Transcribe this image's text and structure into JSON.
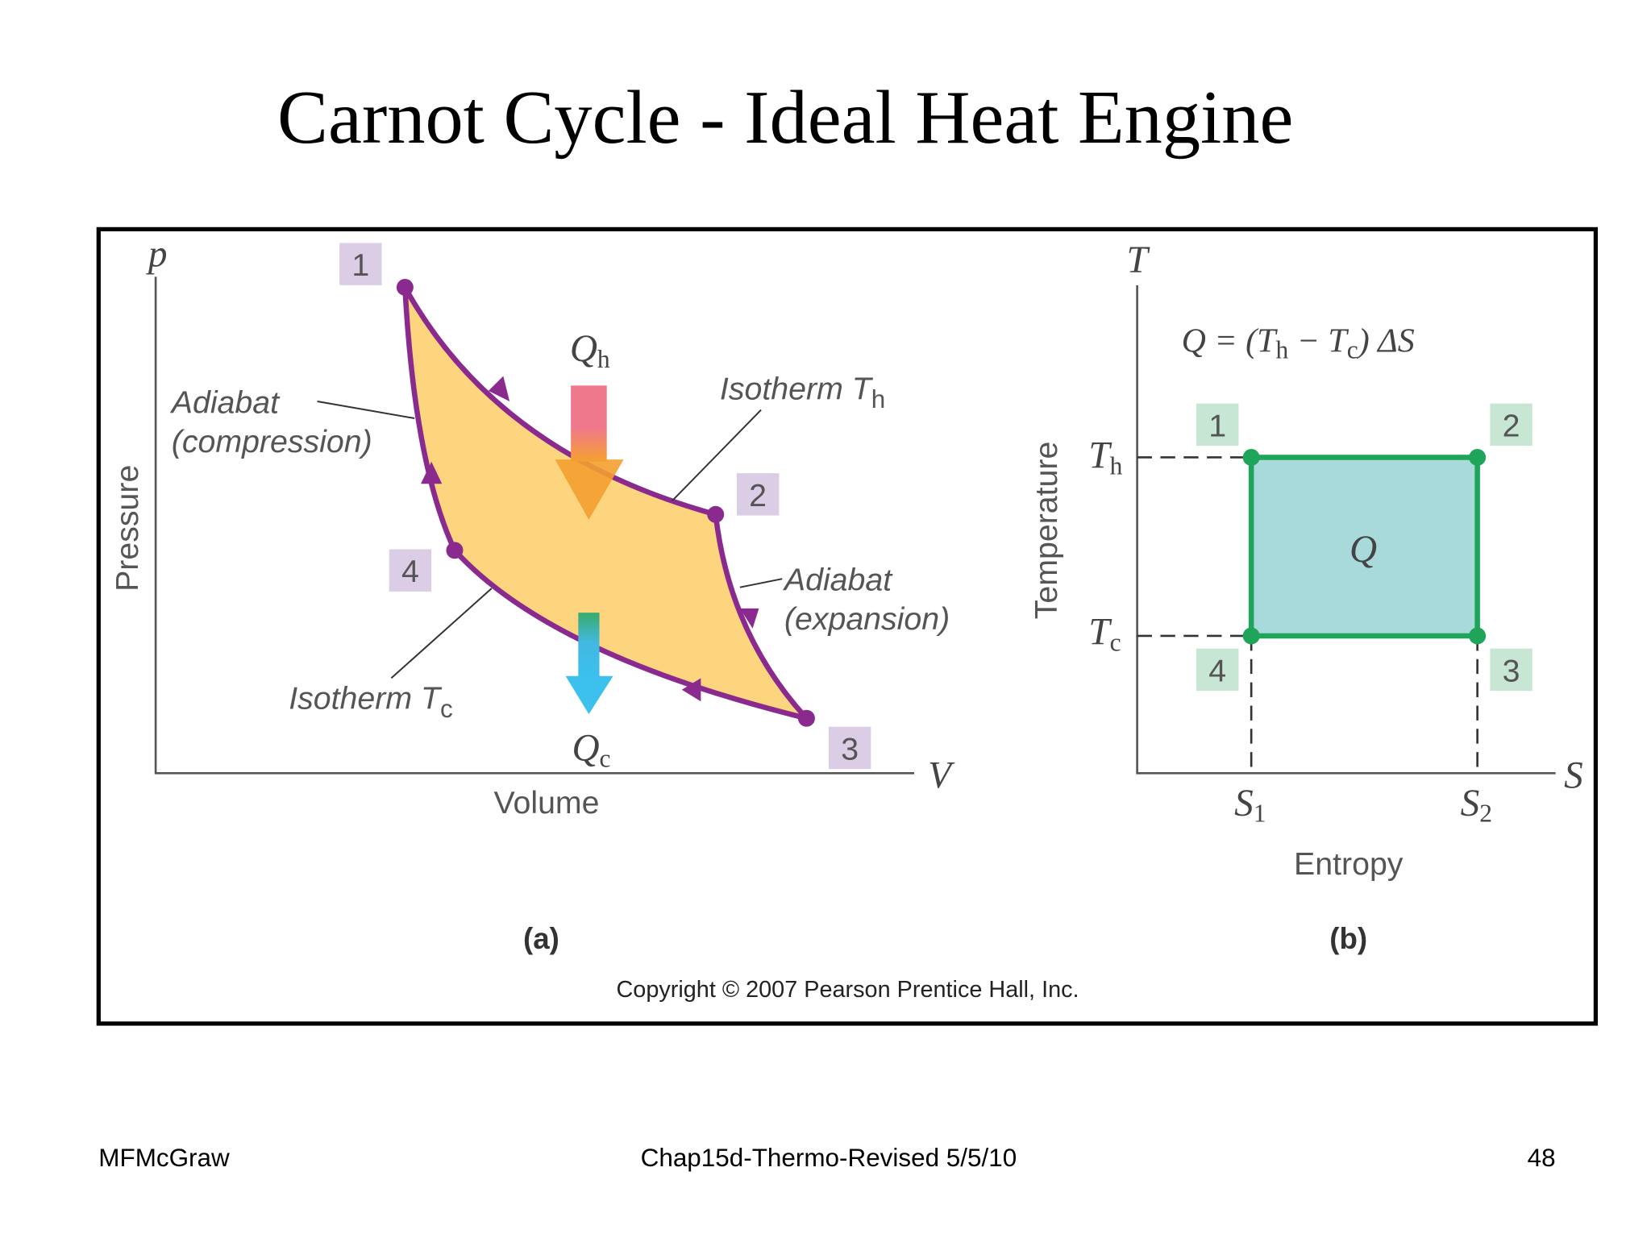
{
  "title": "Carnot Cycle - Ideal Heat Engine",
  "panel_a": {
    "axis_y_symbol": "p",
    "axis_y_label": "Pressure",
    "axis_x_symbol": "V",
    "axis_x_label": "Volume",
    "points": [
      "1",
      "2",
      "3",
      "4"
    ],
    "heat_in": {
      "symbol": "Q",
      "sub": "h"
    },
    "heat_out": {
      "symbol": "Q",
      "sub": "c"
    },
    "adiabat_compression": [
      "Adiabat",
      "(compression)"
    ],
    "adiabat_expansion": [
      "Adiabat",
      "(expansion)"
    ],
    "isotherm_hot": {
      "text": "Isotherm T",
      "sub": "h"
    },
    "isotherm_cold": {
      "text": "Isotherm T",
      "sub": "c"
    },
    "caption": "(a)"
  },
  "panel_b": {
    "axis_y_symbol": "T",
    "axis_y_label": "Temperature",
    "axis_x_symbol": "S",
    "axis_x_label": "Entropy",
    "equation": [
      "Q = (T",
      "h",
      " − T",
      "c",
      ") ΔS"
    ],
    "t_hot": {
      "symbol": "T",
      "sub": "h"
    },
    "t_cold": {
      "symbol": "T",
      "sub": "c"
    },
    "s1": {
      "symbol": "S",
      "sub": "1"
    },
    "s2": {
      "symbol": "S",
      "sub": "2"
    },
    "points": [
      "1",
      "2",
      "3",
      "4"
    ],
    "area_label": "Q",
    "caption": "(b)"
  },
  "copyright": "Copyright © 2007 Pearson Prentice Hall, Inc.",
  "footer": {
    "left": "MFMcGraw",
    "center": "Chap15d-Thermo-Revised 5/5/10",
    "right": "48"
  }
}
